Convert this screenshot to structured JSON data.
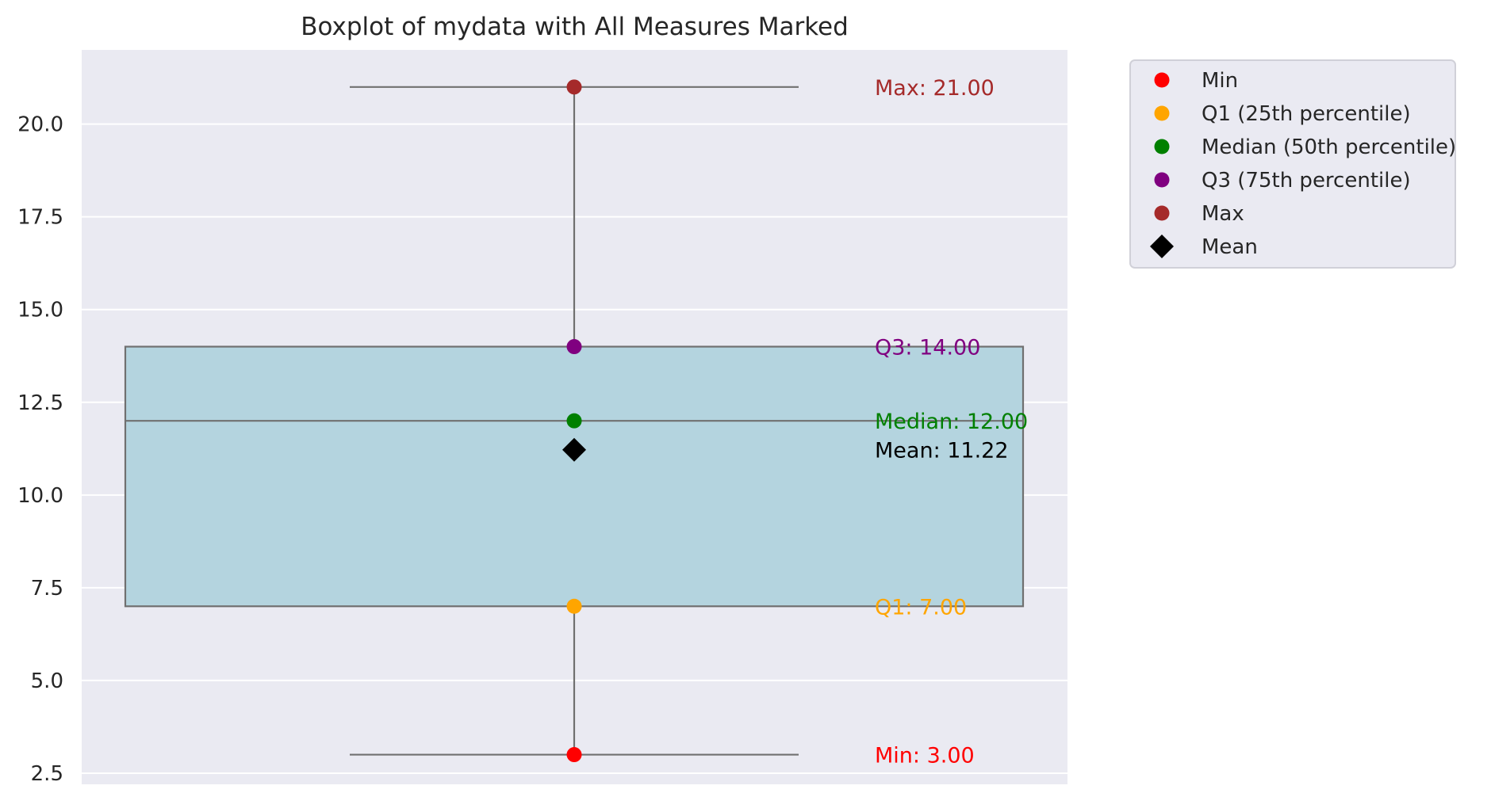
{
  "chart_data": {
    "type": "boxplot",
    "title": "Boxplot of mydata with All Measures Marked",
    "xlabel": "",
    "ylabel": "",
    "ylim": [
      2.2,
      22.0
    ],
    "yticks": [
      2.5,
      5.0,
      7.5,
      10.0,
      12.5,
      15.0,
      17.5,
      20.0
    ],
    "ytick_labels": [
      "2.5",
      "5.0",
      "7.5",
      "10.0",
      "12.5",
      "15.0",
      "17.5",
      "20.0"
    ],
    "grid": true,
    "legend_position": "outside-top-right",
    "stats": {
      "min": 3.0,
      "q1": 7.0,
      "median": 12.0,
      "q3": 14.0,
      "max": 21.0,
      "mean": 11.22
    },
    "annotations": [
      {
        "key": "max",
        "text": "Max: 21.00",
        "y": 21.0,
        "color": "#a52a2a"
      },
      {
        "key": "q3",
        "text": "Q3: 14.00",
        "y": 14.0,
        "color": "#800080"
      },
      {
        "key": "median",
        "text": "Median: 12.00",
        "y": 12.0,
        "color": "#008000"
      },
      {
        "key": "mean",
        "text": "Mean: 11.22",
        "y": 11.22,
        "color": "#000000"
      },
      {
        "key": "q1",
        "text": "Q1: 7.00",
        "y": 7.0,
        "color": "#ffa500"
      },
      {
        "key": "min",
        "text": "Min: 3.00",
        "y": 3.0,
        "color": "#ff0000"
      }
    ],
    "points": [
      {
        "key": "min",
        "y": 3.0,
        "color": "#ff0000",
        "marker": "circle"
      },
      {
        "key": "q1",
        "y": 7.0,
        "color": "#ffa500",
        "marker": "circle"
      },
      {
        "key": "median",
        "y": 12.0,
        "color": "#008000",
        "marker": "circle"
      },
      {
        "key": "q3",
        "y": 14.0,
        "color": "#800080",
        "marker": "circle"
      },
      {
        "key": "max",
        "y": 21.0,
        "color": "#a52a2a",
        "marker": "circle"
      },
      {
        "key": "mean",
        "y": 11.22,
        "color": "#000000",
        "marker": "diamond"
      }
    ],
    "legend": [
      {
        "label": "Min",
        "color": "#ff0000",
        "marker": "circle"
      },
      {
        "label": "Q1 (25th percentile)",
        "color": "#ffa500",
        "marker": "circle"
      },
      {
        "label": "Median (50th percentile)",
        "color": "#008000",
        "marker": "circle"
      },
      {
        "label": "Q3 (75th percentile)",
        "color": "#800080",
        "marker": "circle"
      },
      {
        "label": "Max",
        "color": "#a52a2a",
        "marker": "circle"
      },
      {
        "label": "Mean",
        "color": "#000000",
        "marker": "diamond"
      }
    ],
    "colors": {
      "background": "#eaeaf2",
      "grid": "#ffffff",
      "box_fill": "#b4d4df",
      "box_edge": "#707070"
    }
  }
}
